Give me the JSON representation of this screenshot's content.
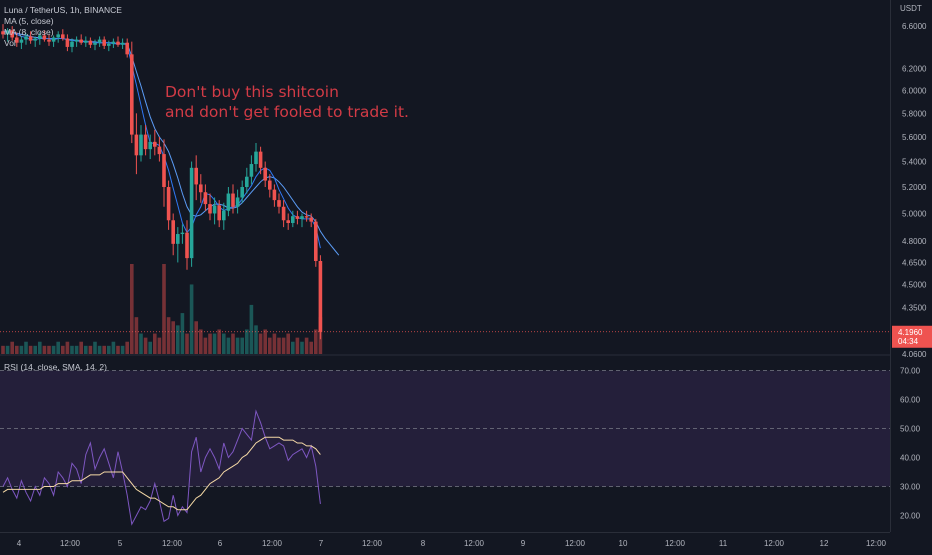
{
  "legend": {
    "symbol": "Luna / TetherUS, 1h, BINANCE",
    "ma5": "MA (5, close)",
    "ma8": "MA (8, close)",
    "vol": "Vol",
    "rsi": "RSI (14, close, SMA, 14, 2)"
  },
  "annotation": {
    "line1": "Don't buy this shitcoin",
    "line2": "and don't get fooled to trade it."
  },
  "price_axis": {
    "currency": "USDT",
    "last_price": "4.1960",
    "countdown": "04:34"
  },
  "colors": {
    "background": "#131722",
    "up": "#26a69a",
    "down": "#ef5350",
    "ma5": "#3179f5",
    "ma8": "#5b9cf6",
    "rsi_line": "#7e57c2",
    "rsi_ma": "#f5d9a6",
    "rsi_band": "#241f3a",
    "annotation": "#d23b46"
  },
  "chart_data": [
    {
      "type": "candlestick",
      "title": "Luna / TetherUS, 1h, BINANCE",
      "ylim": [
        4.06,
        6.8
      ],
      "yscale": "log",
      "y_ticks": [
        "6.6000",
        "6.2000",
        "6.0000",
        "5.8000",
        "5.6000",
        "5.4000",
        "5.2000",
        "5.0000",
        "4.8000",
        "4.6500",
        "4.5000",
        "4.3500",
        "4.1960",
        "4.0600"
      ],
      "x_ticks": [
        "4",
        "12:00",
        "5",
        "12:00",
        "6",
        "12:00",
        "7",
        "12:00",
        "8",
        "12:00",
        "9",
        "12:00",
        "10",
        "12:00",
        "11",
        "12:00",
        "12",
        "12:00"
      ],
      "candles": [
        {
          "o": 6.55,
          "h": 6.62,
          "l": 6.48,
          "c": 6.52
        },
        {
          "o": 6.52,
          "h": 6.58,
          "l": 6.45,
          "c": 6.56
        },
        {
          "o": 6.56,
          "h": 6.6,
          "l": 6.46,
          "c": 6.49
        },
        {
          "o": 6.49,
          "h": 6.54,
          "l": 6.4,
          "c": 6.44
        },
        {
          "o": 6.44,
          "h": 6.5,
          "l": 6.38,
          "c": 6.47
        },
        {
          "o": 6.47,
          "h": 6.53,
          "l": 6.42,
          "c": 6.5
        },
        {
          "o": 6.5,
          "h": 6.55,
          "l": 6.43,
          "c": 6.46
        },
        {
          "o": 6.46,
          "h": 6.5,
          "l": 6.4,
          "c": 6.48
        },
        {
          "o": 6.48,
          "h": 6.54,
          "l": 6.42,
          "c": 6.51
        },
        {
          "o": 6.51,
          "h": 6.56,
          "l": 6.45,
          "c": 6.47
        },
        {
          "o": 6.47,
          "h": 6.52,
          "l": 6.41,
          "c": 6.45
        },
        {
          "o": 6.45,
          "h": 6.51,
          "l": 6.4,
          "c": 6.49
        },
        {
          "o": 6.49,
          "h": 6.55,
          "l": 6.44,
          "c": 6.52
        },
        {
          "o": 6.52,
          "h": 6.57,
          "l": 6.46,
          "c": 6.48
        },
        {
          "o": 6.48,
          "h": 6.52,
          "l": 6.36,
          "c": 6.4
        },
        {
          "o": 6.4,
          "h": 6.48,
          "l": 6.35,
          "c": 6.45
        },
        {
          "o": 6.45,
          "h": 6.5,
          "l": 6.4,
          "c": 6.47
        },
        {
          "o": 6.47,
          "h": 6.52,
          "l": 6.42,
          "c": 6.44
        },
        {
          "o": 6.44,
          "h": 6.5,
          "l": 6.4,
          "c": 6.46
        },
        {
          "o": 6.46,
          "h": 6.49,
          "l": 6.39,
          "c": 6.42
        },
        {
          "o": 6.42,
          "h": 6.47,
          "l": 6.37,
          "c": 6.44
        },
        {
          "o": 6.44,
          "h": 6.5,
          "l": 6.4,
          "c": 6.47
        },
        {
          "o": 6.47,
          "h": 6.5,
          "l": 6.38,
          "c": 6.41
        },
        {
          "o": 6.41,
          "h": 6.46,
          "l": 6.36,
          "c": 6.43
        },
        {
          "o": 6.43,
          "h": 6.48,
          "l": 6.39,
          "c": 6.45
        },
        {
          "o": 6.45,
          "h": 6.5,
          "l": 6.4,
          "c": 6.42
        },
        {
          "o": 6.42,
          "h": 6.48,
          "l": 6.38,
          "c": 6.44
        },
        {
          "o": 6.44,
          "h": 6.48,
          "l": 6.3,
          "c": 6.33
        },
        {
          "o": 6.33,
          "h": 6.45,
          "l": 5.55,
          "c": 5.62
        },
        {
          "o": 5.62,
          "h": 5.8,
          "l": 5.3,
          "c": 5.45
        },
        {
          "o": 5.45,
          "h": 5.7,
          "l": 5.4,
          "c": 5.62
        },
        {
          "o": 5.62,
          "h": 5.7,
          "l": 5.45,
          "c": 5.5
        },
        {
          "o": 5.5,
          "h": 5.62,
          "l": 5.42,
          "c": 5.56
        },
        {
          "o": 5.56,
          "h": 5.66,
          "l": 5.45,
          "c": 5.52
        },
        {
          "o": 5.52,
          "h": 5.6,
          "l": 5.4,
          "c": 5.46
        },
        {
          "o": 5.46,
          "h": 5.58,
          "l": 5.05,
          "c": 5.2
        },
        {
          "o": 5.2,
          "h": 5.25,
          "l": 4.88,
          "c": 4.95
        },
        {
          "o": 4.95,
          "h": 5.0,
          "l": 4.7,
          "c": 4.78
        },
        {
          "o": 4.78,
          "h": 4.9,
          "l": 4.65,
          "c": 4.85
        },
        {
          "o": 4.85,
          "h": 4.92,
          "l": 4.78,
          "c": 4.86
        },
        {
          "o": 4.86,
          "h": 4.95,
          "l": 4.6,
          "c": 4.68
        },
        {
          "o": 4.68,
          "h": 5.4,
          "l": 4.62,
          "c": 5.35
        },
        {
          "o": 5.35,
          "h": 5.45,
          "l": 5.1,
          "c": 5.22
        },
        {
          "o": 5.22,
          "h": 5.3,
          "l": 5.08,
          "c": 5.16
        },
        {
          "o": 5.16,
          "h": 5.22,
          "l": 5.02,
          "c": 5.07
        },
        {
          "o": 5.07,
          "h": 5.15,
          "l": 4.95,
          "c": 5.0
        },
        {
          "o": 5.0,
          "h": 5.12,
          "l": 4.92,
          "c": 5.06
        },
        {
          "o": 5.06,
          "h": 5.1,
          "l": 4.9,
          "c": 4.95
        },
        {
          "o": 4.95,
          "h": 5.08,
          "l": 4.88,
          "c": 5.02
        },
        {
          "o": 5.02,
          "h": 5.2,
          "l": 4.98,
          "c": 5.15
        },
        {
          "o": 5.15,
          "h": 5.22,
          "l": 5.0,
          "c": 5.05
        },
        {
          "o": 5.05,
          "h": 5.18,
          "l": 5.0,
          "c": 5.12
        },
        {
          "o": 5.12,
          "h": 5.25,
          "l": 5.08,
          "c": 5.2
        },
        {
          "o": 5.2,
          "h": 5.35,
          "l": 5.15,
          "c": 5.28
        },
        {
          "o": 5.28,
          "h": 5.45,
          "l": 5.22,
          "c": 5.38
        },
        {
          "o": 5.38,
          "h": 5.55,
          "l": 5.32,
          "c": 5.48
        },
        {
          "o": 5.48,
          "h": 5.52,
          "l": 5.3,
          "c": 5.35
        },
        {
          "o": 5.35,
          "h": 5.4,
          "l": 5.2,
          "c": 5.25
        },
        {
          "o": 5.25,
          "h": 5.3,
          "l": 5.12,
          "c": 5.18
        },
        {
          "o": 5.18,
          "h": 5.22,
          "l": 5.05,
          "c": 5.1
        },
        {
          "o": 5.1,
          "h": 5.15,
          "l": 5.0,
          "c": 5.05
        },
        {
          "o": 5.05,
          "h": 5.1,
          "l": 4.9,
          "c": 4.95
        },
        {
          "o": 4.95,
          "h": 5.0,
          "l": 4.88,
          "c": 4.93
        },
        {
          "o": 4.93,
          "h": 5.02,
          "l": 4.9,
          "c": 4.98
        },
        {
          "o": 4.98,
          "h": 5.02,
          "l": 4.92,
          "c": 4.96
        },
        {
          "o": 4.96,
          "h": 5.0,
          "l": 4.9,
          "c": 4.98
        },
        {
          "o": 4.98,
          "h": 5.02,
          "l": 4.94,
          "c": 4.97
        },
        {
          "o": 4.97,
          "h": 5.0,
          "l": 4.9,
          "c": 4.94
        },
        {
          "o": 4.94,
          "h": 4.96,
          "l": 4.62,
          "c": 4.66
        },
        {
          "o": 4.66,
          "h": 4.7,
          "l": 4.15,
          "c": 4.196
        }
      ],
      "volume": [
        2,
        2,
        3,
        2,
        2,
        3,
        2,
        2,
        3,
        2,
        2,
        2,
        3,
        2,
        3,
        2,
        2,
        3,
        2,
        2,
        3,
        2,
        2,
        2,
        3,
        2,
        2,
        3,
        22,
        9,
        5,
        4,
        3,
        5,
        4,
        22,
        9,
        8,
        7,
        10,
        5,
        17,
        8,
        6,
        4,
        5,
        5,
        6,
        5,
        4,
        5,
        4,
        4,
        6,
        12,
        7,
        5,
        6,
        4,
        5,
        4,
        4,
        5,
        3,
        4,
        3,
        4,
        3,
        6,
        9
      ],
      "ma5": [
        6.55,
        6.54,
        6.53,
        6.52,
        6.5,
        6.49,
        6.47,
        6.47,
        6.48,
        6.48,
        6.48,
        6.47,
        6.48,
        6.48,
        6.47,
        6.46,
        6.46,
        6.45,
        6.45,
        6.45,
        6.44,
        6.44,
        6.44,
        6.44,
        6.43,
        6.43,
        6.43,
        6.42,
        6.23,
        6.05,
        5.87,
        5.7,
        5.55,
        5.55,
        5.53,
        5.44,
        5.33,
        5.19,
        5.06,
        4.93,
        4.86,
        4.9,
        4.99,
        5.05,
        5.15,
        5.14,
        5.1,
        5.05,
        5.02,
        5.04,
        5.05,
        5.06,
        5.11,
        5.16,
        5.21,
        5.28,
        5.33,
        5.35,
        5.33,
        5.27,
        5.18,
        5.11,
        5.04,
        4.99,
        4.97,
        4.96,
        4.96,
        4.96,
        4.9,
        4.75
      ],
      "ma8": [
        6.55,
        6.55,
        6.54,
        6.53,
        6.52,
        6.51,
        6.5,
        6.49,
        6.49,
        6.48,
        6.48,
        6.48,
        6.48,
        6.48,
        6.47,
        6.47,
        6.46,
        6.46,
        6.45,
        6.45,
        6.45,
        6.44,
        6.44,
        6.44,
        6.44,
        6.43,
        6.43,
        6.43,
        6.31,
        6.17,
        6.04,
        5.9,
        5.77,
        5.67,
        5.6,
        5.55,
        5.48,
        5.38,
        5.27,
        5.15,
        5.05,
        4.99,
        4.98,
        4.99,
        5.02,
        5.05,
        5.07,
        5.07,
        5.06,
        5.04,
        5.04,
        5.05,
        5.08,
        5.12,
        5.16,
        5.2,
        5.24,
        5.27,
        5.28,
        5.27,
        5.24,
        5.2,
        5.15,
        5.1,
        5.05,
        5.01,
        4.99,
        4.98,
        4.94,
        4.87
      ],
      "ma_extension": [
        4.82,
        4.78,
        4.74,
        4.7
      ]
    },
    {
      "type": "line",
      "title": "RSI (14, close, SMA, 14, 2)",
      "ylim": [
        15,
        75
      ],
      "y_ticks": [
        "70.00",
        "60.00",
        "50.00",
        "40.00",
        "30.00",
        "20.00"
      ],
      "band": [
        30,
        70
      ],
      "levels": [
        70,
        50,
        30
      ],
      "series": [
        {
          "name": "RSI",
          "values": [
            30,
            33,
            29,
            26,
            32,
            28,
            25,
            30,
            27,
            33,
            31,
            27,
            35,
            33,
            30,
            38,
            36,
            31,
            41,
            45,
            36,
            40,
            43,
            38,
            33,
            42,
            35,
            27,
            17,
            20,
            23,
            22,
            25,
            31,
            25,
            18,
            19,
            27,
            20,
            23,
            21,
            42,
            47,
            35,
            40,
            43,
            40,
            36,
            45,
            40,
            42,
            46,
            50,
            48,
            46,
            56,
            52,
            47,
            43,
            44,
            45,
            44,
            39,
            41,
            42,
            43,
            40,
            44,
            37,
            24
          ]
        },
        {
          "name": "RSI-based MA",
          "values": [
            28,
            29,
            29,
            29,
            29,
            29,
            29,
            29,
            29,
            30,
            30,
            30,
            31,
            31,
            31,
            32,
            32,
            32,
            33,
            34,
            34,
            34,
            35,
            35,
            35,
            35,
            35,
            33,
            31,
            29,
            28,
            27,
            26,
            26,
            25,
            24,
            23,
            23,
            22,
            22,
            22,
            24,
            26,
            27,
            29,
            31,
            32,
            33,
            35,
            36,
            37,
            38,
            40,
            41,
            43,
            45,
            46,
            47,
            47,
            47,
            47,
            46,
            46,
            46,
            45,
            45,
            44,
            44,
            43,
            41
          ]
        }
      ]
    }
  ]
}
